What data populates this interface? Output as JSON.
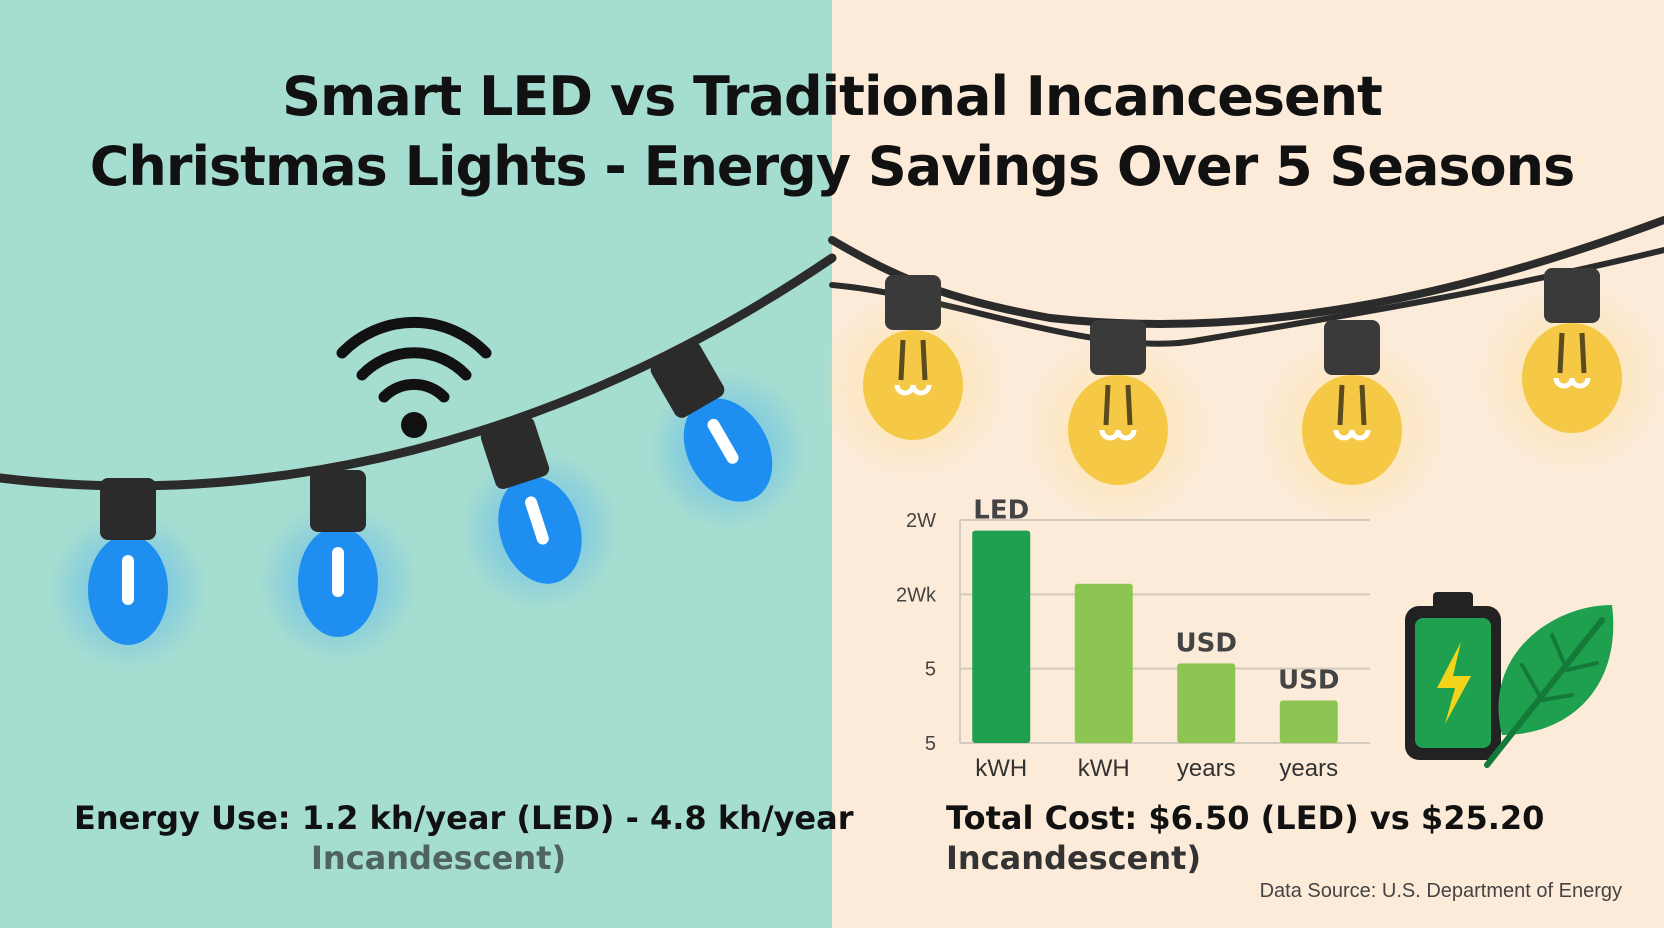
{
  "title": {
    "line1": "Smart LED vs Traditional Incancesent",
    "line2": "Christmas Lights - Energy Savings Over 5 Seasons"
  },
  "left": {
    "caption_main": "Energy Use: 1.2 kh/year (LED) - 4.8 kh/year",
    "caption_sub": "Incandescent)",
    "icons": [
      "wifi-icon",
      "led-bulb-icon"
    ],
    "bulb_color": "#1e8ff0"
  },
  "right": {
    "caption_main": "Total Cost: $6.50 (LED) vs $25.20",
    "caption_sub": "Incandescent)",
    "icons": [
      "incandescent-bulb-icon",
      "battery-icon",
      "leaf-icon"
    ],
    "bulb_color": "#f5c945"
  },
  "chart_data": {
    "type": "bar",
    "title": "",
    "y_ticks": [
      "2W",
      "2Wk",
      "5",
      "5"
    ],
    "categories": [
      "kWH",
      "kWH",
      "years",
      "years"
    ],
    "values": [
      4,
      3,
      1.5,
      0.8
    ],
    "bar_labels": [
      "LED",
      "",
      "USD",
      "USD"
    ],
    "bar_colors": [
      "#1fa04f",
      "#8cc552",
      "#8cc552",
      "#8cc552"
    ],
    "grid": true
  },
  "source": "Data Source: U.S. Department of Energy",
  "colors": {
    "left_bg": "#a6ddd1",
    "right_bg": "#fcebd9",
    "cord": "#2b2b2b"
  }
}
